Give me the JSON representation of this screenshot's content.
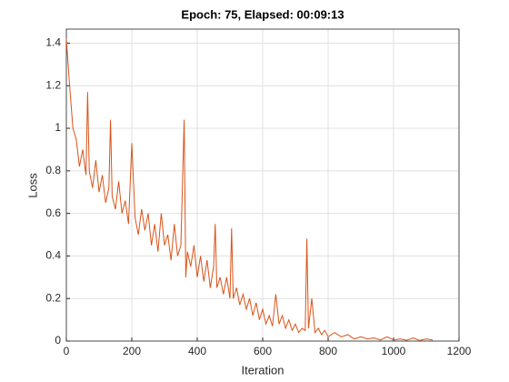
{
  "chart_data": {
    "type": "line",
    "title": "Epoch: 75, Elapsed: 00:09:13",
    "x_label": "Iteration",
    "y_label": "Loss",
    "x": [
      0,
      10,
      20,
      30,
      40,
      50,
      60,
      65,
      70,
      80,
      90,
      100,
      110,
      120,
      130,
      135,
      140,
      150,
      160,
      170,
      180,
      190,
      200,
      210,
      220,
      230,
      240,
      250,
      260,
      270,
      280,
      290,
      300,
      310,
      320,
      330,
      340,
      350,
      360,
      365,
      370,
      380,
      390,
      400,
      410,
      420,
      430,
      440,
      450,
      455,
      460,
      470,
      480,
      490,
      500,
      505,
      510,
      520,
      530,
      540,
      550,
      560,
      570,
      580,
      590,
      600,
      610,
      620,
      630,
      640,
      650,
      660,
      670,
      680,
      690,
      700,
      710,
      720,
      730,
      735,
      740,
      750,
      760,
      770,
      780,
      790,
      800,
      820,
      840,
      860,
      880,
      900,
      920,
      940,
      960,
      980,
      1000,
      1020,
      1040,
      1060,
      1080,
      1100,
      1120
    ],
    "series": [
      {
        "name": "Loss",
        "color": "#d95319",
        "values": [
          1.42,
          1.2,
          1.0,
          0.95,
          0.82,
          0.9,
          0.78,
          1.17,
          0.8,
          0.72,
          0.85,
          0.7,
          0.78,
          0.65,
          0.72,
          1.04,
          0.68,
          0.62,
          0.75,
          0.6,
          0.66,
          0.55,
          0.93,
          0.58,
          0.5,
          0.62,
          0.52,
          0.6,
          0.45,
          0.55,
          0.42,
          0.6,
          0.45,
          0.5,
          0.38,
          0.55,
          0.4,
          0.45,
          1.04,
          0.3,
          0.42,
          0.35,
          0.45,
          0.3,
          0.4,
          0.28,
          0.38,
          0.25,
          0.35,
          0.55,
          0.25,
          0.3,
          0.22,
          0.3,
          0.2,
          0.53,
          0.2,
          0.25,
          0.17,
          0.22,
          0.15,
          0.2,
          0.12,
          0.18,
          0.1,
          0.15,
          0.08,
          0.12,
          0.07,
          0.22,
          0.08,
          0.12,
          0.06,
          0.1,
          0.05,
          0.08,
          0.04,
          0.06,
          0.05,
          0.48,
          0.06,
          0.2,
          0.04,
          0.06,
          0.03,
          0.05,
          0.02,
          0.04,
          0.02,
          0.03,
          0.01,
          0.02,
          0.01,
          0.015,
          0.005,
          0.02,
          0.005,
          0.01,
          0.004,
          0.015,
          0.003,
          0.01,
          0.005
        ]
      }
    ],
    "xlim": [
      0,
      1200
    ],
    "xticks": [
      0,
      200,
      400,
      600,
      800,
      1000,
      1200
    ],
    "ylim": [
      0,
      1.466
    ],
    "yticks": [
      0,
      0.2,
      0.4,
      0.6,
      0.8,
      1,
      1.2,
      1.4
    ],
    "grid": true
  }
}
